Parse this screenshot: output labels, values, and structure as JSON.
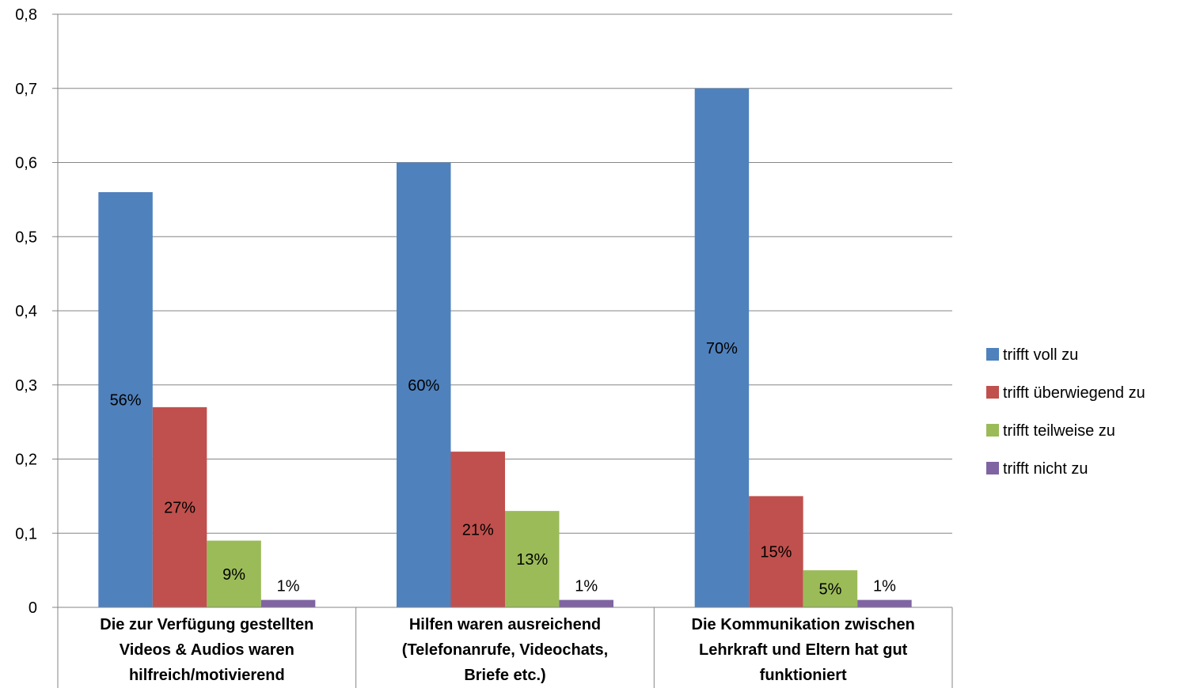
{
  "chart_data": {
    "type": "bar",
    "title": "",
    "xlabel": "",
    "ylabel": "",
    "ylim": [
      0,
      0.8
    ],
    "yticks": [
      "0",
      "0,1",
      "0,2",
      "0,3",
      "0,4",
      "0,5",
      "0,6",
      "0,7",
      "0,8"
    ],
    "grid": true,
    "legend_position": "right",
    "categories": [
      [
        "Die zur Verfügung gestellten",
        "Videos & Audios waren",
        "hilfreich/motivierend"
      ],
      [
        "Hilfen waren ausreichend",
        "(Telefonanrufe, Videochats,",
        "Briefe etc.)"
      ],
      [
        "Die Kommunikation zwischen",
        "Lehrkraft und Eltern hat gut",
        "funktioniert"
      ]
    ],
    "series": [
      {
        "name": "trifft voll zu",
        "color": "#4F81BD",
        "values": [
          0.56,
          0.6,
          0.7
        ],
        "labels": [
          "56%",
          "60%",
          "70%"
        ]
      },
      {
        "name": "trifft überwiegend zu",
        "color": "#C0504D",
        "values": [
          0.27,
          0.21,
          0.15
        ],
        "labels": [
          "27%",
          "21%",
          "15%"
        ]
      },
      {
        "name": "trifft teilweise zu",
        "color": "#9BBB59",
        "values": [
          0.09,
          0.13,
          0.05
        ],
        "labels": [
          "9%",
          "13%",
          "5%"
        ]
      },
      {
        "name": "trifft nicht zu",
        "color": "#8064A2",
        "values": [
          0.01,
          0.01,
          0.01
        ],
        "labels": [
          "1%",
          "1%",
          "1%"
        ]
      }
    ]
  }
}
